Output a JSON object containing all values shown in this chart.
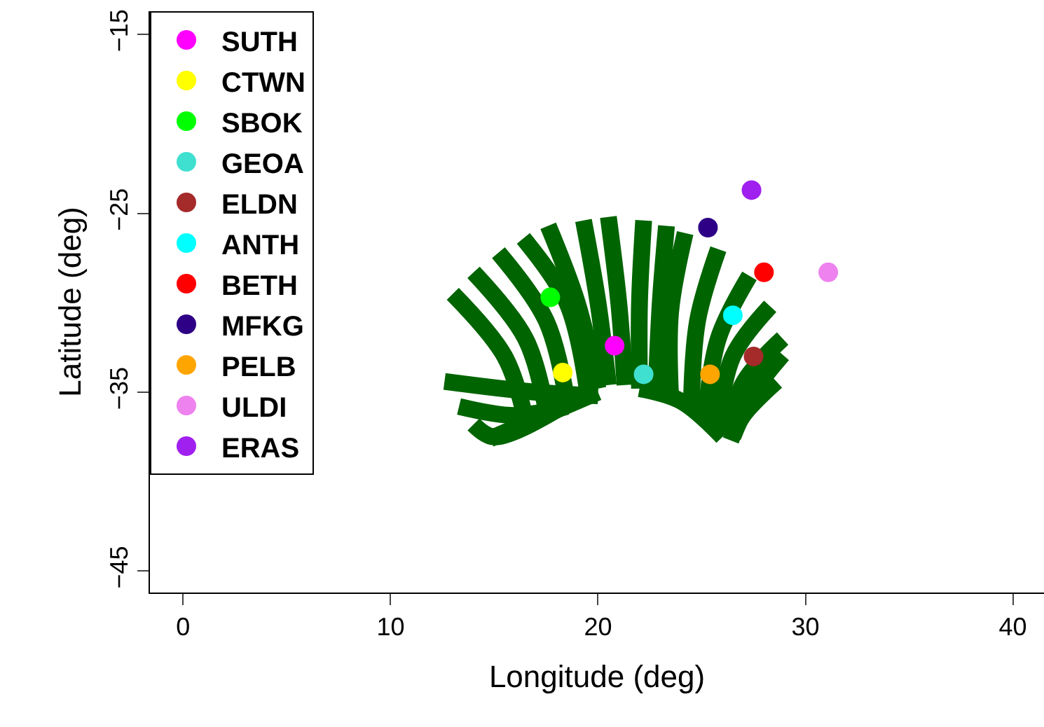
{
  "chart_data": {
    "type": "scatter",
    "xlabel": "Longitude (deg)",
    "ylabel": "Latitude (deg)",
    "xlim": [
      -1.6,
      41.5
    ],
    "ylim": [
      -46.2,
      -13.7
    ],
    "xticks": [
      0,
      10,
      20,
      30,
      40
    ],
    "yticks": [
      -15,
      -25,
      -35,
      -45
    ],
    "grid": false,
    "legend": "top left",
    "marker": "circle",
    "series": [
      {
        "type": "line",
        "marker": "none",
        "color": "#006400",
        "x": [
          12.6,
          17,
          20
        ],
        "values": [
          -34.4,
          -35,
          -35.2
        ]
      },
      {
        "type": "line",
        "marker": "none",
        "color": "#006400",
        "x": [
          13.3,
          16,
          18.5
        ],
        "values": [
          -35.8,
          -36.3,
          -35.8
        ]
      },
      {
        "type": "line",
        "marker": "none",
        "color": "#006400",
        "x": [
          14,
          15,
          18
        ],
        "values": [
          -36.8,
          -37.5,
          -36
        ]
      },
      {
        "type": "line",
        "marker": "none",
        "color": "#006400",
        "x": [
          13,
          15.5,
          16.5
        ],
        "values": [
          -29.5,
          -33,
          -36.5
        ]
      },
      {
        "type": "line",
        "marker": "none",
        "color": "#006400",
        "x": [
          14,
          16.5,
          17.5
        ],
        "values": [
          -28.3,
          -32,
          -36
        ]
      },
      {
        "type": "line",
        "marker": "none",
        "color": "#006400",
        "x": [
          15.2,
          17.5,
          18.5
        ],
        "values": [
          -27.2,
          -31,
          -35.5
        ]
      },
      {
        "type": "line",
        "marker": "none",
        "color": "#006400",
        "x": [
          16.4,
          18.5,
          19.5
        ],
        "values": [
          -26.4,
          -30,
          -35
        ]
      },
      {
        "type": "line",
        "marker": "none",
        "color": "#006400",
        "x": [
          17.6,
          19,
          20
        ],
        "values": [
          -25.7,
          -30,
          -34.8
        ]
      },
      {
        "type": "line",
        "marker": "none",
        "color": "#006400",
        "x": [
          19.3,
          20,
          20.5
        ],
        "values": [
          -25.4,
          -30,
          -34.6
        ]
      },
      {
        "type": "line",
        "marker": "none",
        "color": "#006400",
        "x": [
          20.5,
          21,
          21.3
        ],
        "values": [
          -25.2,
          -30,
          -34.6
        ]
      },
      {
        "type": "line",
        "marker": "none",
        "color": "#006400",
        "x": [
          22.2,
          22,
          22
        ],
        "values": [
          -25.4,
          -30,
          -34.8
        ]
      },
      {
        "type": "line",
        "marker": "none",
        "color": "#006400",
        "x": [
          23.3,
          23,
          22.8
        ],
        "values": [
          -25.7,
          -30,
          -35
        ]
      },
      {
        "type": "line",
        "marker": "none",
        "color": "#006400",
        "x": [
          24.2,
          23.5,
          23.5
        ],
        "values": [
          -26.1,
          -30.5,
          -35.3
        ]
      },
      {
        "type": "line",
        "marker": "none",
        "color": "#006400",
        "x": [
          25.8,
          24.8,
          24.5
        ],
        "values": [
          -27,
          -31,
          -35.8
        ]
      },
      {
        "type": "line",
        "marker": "none",
        "color": "#006400",
        "x": [
          27.3,
          25.8,
          25.2
        ],
        "values": [
          -28.5,
          -32,
          -36.3
        ]
      },
      {
        "type": "line",
        "marker": "none",
        "color": "#006400",
        "x": [
          28.3,
          26.5,
          25.8
        ],
        "values": [
          -30.2,
          -33,
          -36.8
        ]
      },
      {
        "type": "line",
        "marker": "none",
        "color": "#006400",
        "x": [
          28.9,
          27,
          26.3
        ],
        "values": [
          -32,
          -34.5,
          -37.3
        ]
      },
      {
        "type": "line",
        "marker": "none",
        "color": "#006400",
        "x": [
          28.9,
          27.5,
          26.5
        ],
        "values": [
          -32.9,
          -35,
          -37.5
        ]
      },
      {
        "type": "line",
        "marker": "none",
        "color": "#006400",
        "x": [
          28.6,
          27,
          26.4
        ],
        "values": [
          -34.4,
          -36.3,
          -37.7
        ]
      },
      {
        "type": "line",
        "marker": "none",
        "color": "#006400",
        "x": [
          22,
          24,
          26
        ],
        "values": [
          -34.8,
          -35.5,
          -37.5
        ]
      },
      {
        "type": "line",
        "marker": "none",
        "color": "#006400",
        "x": [
          20,
          17,
          14.8
        ],
        "values": [
          -35,
          -36.5,
          -37.6
        ]
      },
      {
        "name": "SUTH",
        "color": "#ff00ff",
        "x": [
          20.8
        ],
        "values": [
          -32.4
        ]
      },
      {
        "name": "CTWN",
        "color": "#ffff00",
        "x": [
          18.3
        ],
        "values": [
          -33.9
        ]
      },
      {
        "name": "SBOK",
        "color": "#00ff00",
        "x": [
          17.7
        ],
        "values": [
          -29.7
        ]
      },
      {
        "name": "GEOA",
        "color": "#40e0d0",
        "x": [
          22.2
        ],
        "values": [
          -34.0
        ]
      },
      {
        "name": "ELDN",
        "color": "#a52a2a",
        "x": [
          27.5
        ],
        "values": [
          -33.0
        ]
      },
      {
        "name": "ANTH",
        "color": "#00ffff",
        "x": [
          26.5
        ],
        "values": [
          -30.7
        ]
      },
      {
        "name": "BETH",
        "color": "#ff0000",
        "x": [
          28.0
        ],
        "values": [
          -28.3
        ]
      },
      {
        "name": "MFKG",
        "color": "#2e0085",
        "x": [
          25.3
        ],
        "values": [
          -25.8
        ]
      },
      {
        "name": "PELB",
        "color": "#ffa500",
        "x": [
          25.4
        ],
        "values": [
          -34.0
        ]
      },
      {
        "name": "ULDI",
        "color": "#ee82ee",
        "x": [
          31.1
        ],
        "values": [
          -28.3
        ]
      },
      {
        "name": "ERAS",
        "color": "#a020f0",
        "x": [
          27.4
        ],
        "values": [
          -23.7
        ]
      }
    ]
  }
}
